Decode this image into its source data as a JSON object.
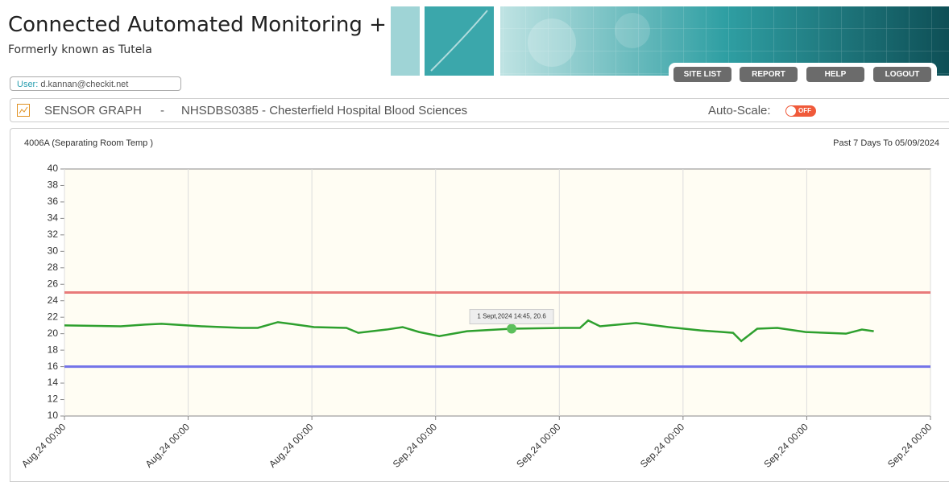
{
  "header": {
    "title": "Connected Automated Monitoring +",
    "subtitle": "Formerly known as Tutela"
  },
  "nav": [
    "SITE LIST",
    "REPORT",
    "HELP",
    "LOGOUT"
  ],
  "user": {
    "label": "User:",
    "email": "d.kannan@checkit.net"
  },
  "sensor_bar": {
    "title": "SENSOR GRAPH",
    "separator": "-",
    "site": "NHSDBS0385 - Chesterfield Hospital Blood Sciences",
    "autoscale_label": "Auto-Scale:",
    "toggle": "OFF"
  },
  "chart_data": {
    "type": "line",
    "title": "4006A (Separating Room Temp )",
    "subtitle": "Past 7 Days To 05/09/2024",
    "x": [
      0,
      10.9,
      15.6,
      18.8,
      26.6,
      34.4,
      37.5,
      41.4,
      43.8,
      48.4,
      54.7,
      57.0,
      62.5,
      65.6,
      68.8,
      72.7,
      78.1,
      86.75,
      96.9,
      100.0,
      101.6,
      103.9,
      110.9,
      117.2,
      123.4,
      129.7,
      131.3,
      134.4,
      138.3,
      143.8,
      151.6,
      154.7,
      157.0
    ],
    "series": [
      {
        "color": "#2ea02e",
        "values": [
          21.0,
          20.9,
          21.1,
          21.2,
          20.9,
          20.7,
          20.7,
          21.4,
          21.2,
          20.8,
          20.7,
          20.1,
          20.5,
          20.8,
          20.2,
          19.7,
          20.3,
          20.6,
          20.7,
          20.7,
          21.6,
          20.9,
          21.3,
          20.8,
          20.4,
          20.1,
          19.1,
          20.6,
          20.7,
          20.2,
          20.0,
          20.5,
          20.3
        ]
      }
    ],
    "xlim": [
      0,
      168
    ],
    "xticks": [
      {
        "value": 0,
        "label": "Aug,24 00:00"
      },
      {
        "value": 24,
        "label": "Aug,24 00:00"
      },
      {
        "value": 48,
        "label": "Aug,24 00:00"
      },
      {
        "value": 72,
        "label": "Sep,24 00:00"
      },
      {
        "value": 96,
        "label": "Sep,24 00:00"
      },
      {
        "value": 120,
        "label": "Sep,24 00:00"
      },
      {
        "value": 144,
        "label": "Sep,24 00:00"
      },
      {
        "value": 168,
        "label": "Sep,24 00:00"
      }
    ],
    "ylim": [
      10,
      40
    ],
    "yticks": [
      10,
      12,
      14,
      16,
      18,
      20,
      22,
      24,
      26,
      28,
      30,
      32,
      34,
      36,
      38,
      40
    ],
    "grid": true,
    "thresholds": [
      {
        "value": 25,
        "color": "#e87a7a"
      },
      {
        "value": 16,
        "color": "#7373e8"
      }
    ],
    "highlight": {
      "x": 86.75,
      "y": 20.6,
      "label": "1 Sept,2024 14:45, 20.6"
    }
  }
}
